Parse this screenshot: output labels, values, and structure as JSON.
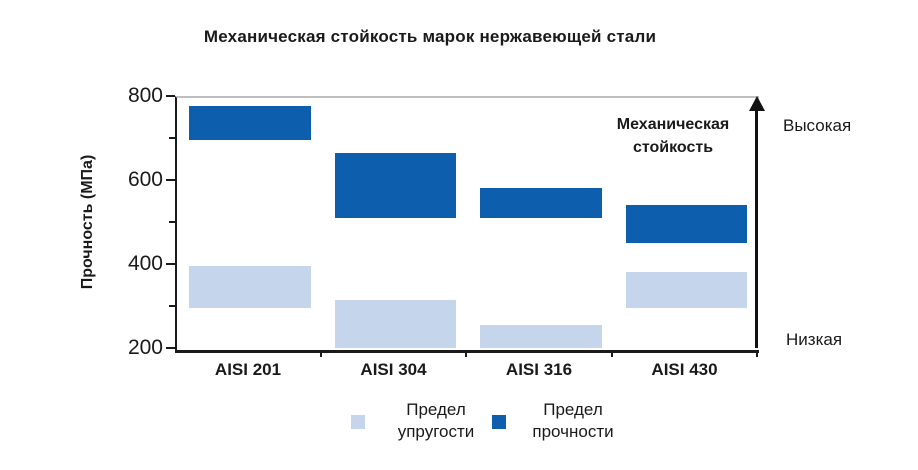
{
  "title": "Механическая стойкость марок нержавеющей стали",
  "chart_data": {
    "type": "bar",
    "subtype": "floating-range-bars",
    "title": "Механическая стойкость марок нержавеющей стали",
    "categories": [
      "AISI 201",
      "AISI 304",
      "AISI 316",
      "AISI 430"
    ],
    "series": [
      {
        "name": "Предел упругости",
        "color": "#c5d5ec",
        "ranges_mpa": [
          [
            300,
            400
          ],
          [
            205,
            320
          ],
          [
            205,
            260
          ],
          [
            300,
            385
          ]
        ]
      },
      {
        "name": "Предел прочности",
        "color": "#0d5fad",
        "ranges_mpa": [
          [
            700,
            780
          ],
          [
            515,
            670
          ],
          [
            515,
            585
          ],
          [
            455,
            545
          ]
        ]
      }
    ],
    "xlabel": "",
    "ylabel": "Прочность (МПа)",
    "ylim": [
      200,
      800
    ],
    "yticks": [
      200,
      400,
      600,
      800
    ],
    "yticks_minor": [
      300,
      500,
      700
    ],
    "grid": false,
    "legend_position": "bottom"
  },
  "annotation": {
    "line1": "Механическая",
    "line2": "стойкость",
    "arrow_top_label": "Высокая",
    "arrow_bottom_label": "Низкая"
  },
  "colors": {
    "axis": "#1a1a1a",
    "plot_top_border": "#bfbfbf",
    "arrow": "#111111",
    "background": "#ffffff"
  }
}
